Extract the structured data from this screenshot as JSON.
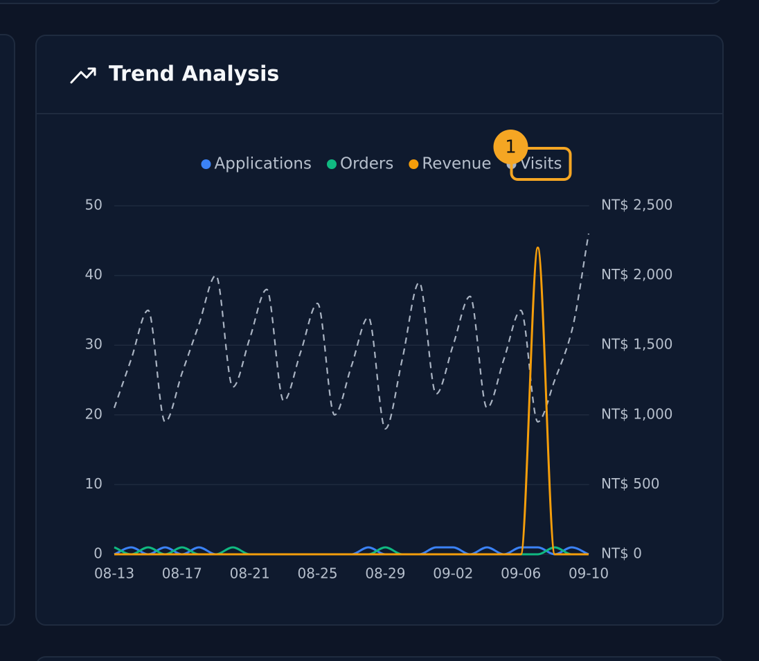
{
  "chart_data": {
    "type": "line",
    "title": "Trend Analysis",
    "annotations": [
      "1"
    ],
    "categories": [
      "08-13",
      null,
      null,
      null,
      "08-17",
      null,
      null,
      null,
      "08-21",
      null,
      null,
      null,
      "08-25",
      null,
      null,
      null,
      "08-29",
      null,
      null,
      null,
      "09-02",
      null,
      null,
      null,
      "09-06",
      null,
      null,
      null,
      "09-10"
    ],
    "series": [
      {
        "name": "Applications",
        "color": "#3b82f6",
        "axis": "y",
        "values": [
          0,
          1,
          0,
          1,
          0,
          1,
          0,
          0,
          0,
          0,
          0,
          0,
          0,
          0,
          0,
          1,
          0,
          0,
          0,
          1,
          1,
          0,
          1,
          0,
          1,
          1,
          0,
          1,
          0
        ]
      },
      {
        "name": "Orders",
        "color": "#10b981",
        "axis": "y",
        "values": [
          1,
          0,
          1,
          0,
          1,
          0,
          0,
          1,
          0,
          0,
          0,
          0,
          0,
          0,
          0,
          0,
          1,
          0,
          0,
          0,
          0,
          0,
          0,
          0,
          0,
          0,
          1,
          0,
          0
        ]
      },
      {
        "name": "Revenue",
        "color": "#f59e0b",
        "axis": "y2",
        "values": [
          0,
          0,
          0,
          0,
          0,
          0,
          0,
          0,
          0,
          0,
          0,
          0,
          0,
          0,
          0,
          0,
          0,
          0,
          0,
          0,
          0,
          0,
          0,
          0,
          0,
          2200,
          0,
          0,
          0
        ]
      },
      {
        "name": "Visits",
        "color": "#aab4c3",
        "axis": "y",
        "dashed": true,
        "values": [
          21,
          28,
          35,
          19,
          26,
          33,
          40,
          24,
          31,
          38,
          22,
          29,
          36,
          20,
          27,
          34,
          18,
          28,
          39,
          23,
          30,
          37,
          21,
          28,
          35,
          19,
          25,
          32,
          46
        ]
      }
    ],
    "ylim": [
      0,
      50
    ],
    "yticks": [
      0,
      10,
      20,
      30,
      40,
      50
    ],
    "y2lim": [
      0,
      2500
    ],
    "y2ticks": [
      {
        "value": 0,
        "label": "NT$ 0"
      },
      {
        "value": 500,
        "label": "NT$ 500"
      },
      {
        "value": 1000,
        "label": "NT$ 1,000"
      },
      {
        "value": 1500,
        "label": "NT$ 1,500"
      },
      {
        "value": 2000,
        "label": "NT$ 2,000"
      },
      {
        "value": 2500,
        "label": "NT$ 2,500"
      }
    ],
    "grid": true,
    "legend": "top"
  }
}
